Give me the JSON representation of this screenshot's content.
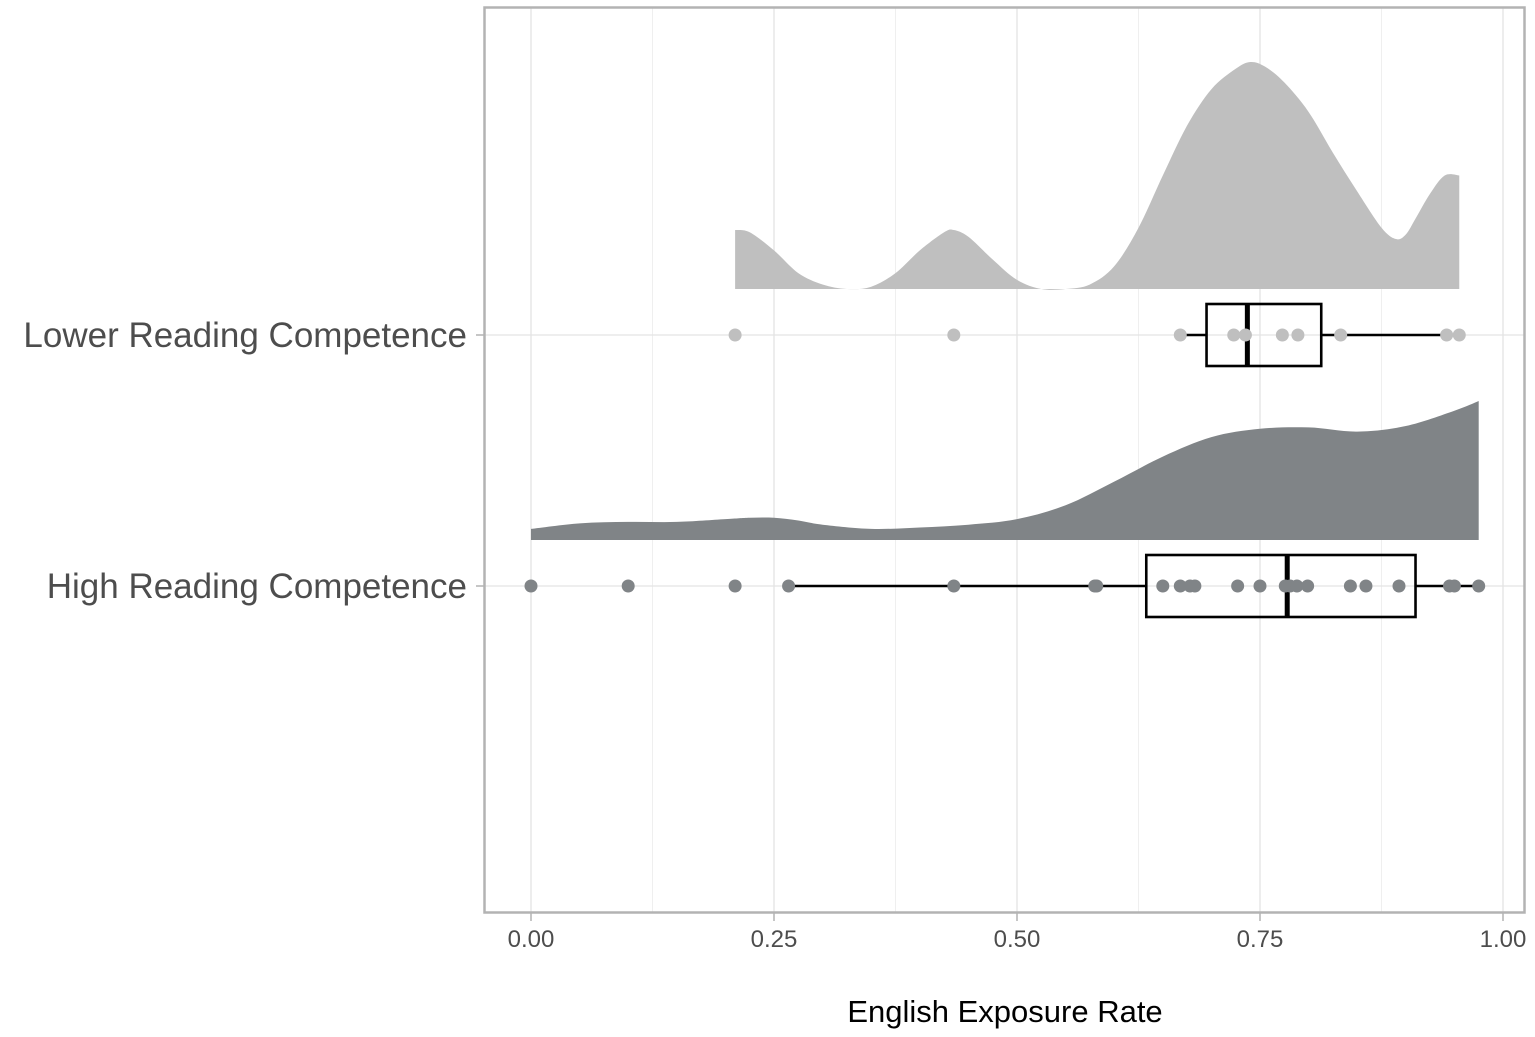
{
  "chart_data": {
    "type": "raincloud",
    "xlabel": "English Exposure Rate",
    "xlim": [
      -0.049,
      1.0
    ],
    "x_ticks": [
      {
        "value": 0.0,
        "label": "0.00"
      },
      {
        "value": 0.25,
        "label": "0.25"
      },
      {
        "value": 0.5,
        "label": "0.50"
      },
      {
        "value": 0.75,
        "label": "0.75"
      },
      {
        "value": 1.0,
        "label": "1.00"
      }
    ],
    "x_minor_ticks": [
      0.125,
      0.375,
      0.625,
      0.875
    ],
    "grid": true,
    "legend": "none",
    "categories": [
      "Lower Reading Competence",
      "High Reading Competence"
    ],
    "series": [
      {
        "category": "Lower Reading Competence",
        "color": "#bfbfbf",
        "points": [
          0.21,
          0.435,
          0.668,
          0.723,
          0.735,
          0.773,
          0.789,
          0.833,
          0.942,
          0.955
        ],
        "box": {
          "q1": 0.695,
          "median": 0.737,
          "q3": 0.813,
          "whisker_low": 0.668,
          "whisker_high": 0.955
        },
        "density": {
          "x": [
            0.21,
            0.225,
            0.25,
            0.275,
            0.3,
            0.325,
            0.35,
            0.375,
            0.4,
            0.425,
            0.435,
            0.45,
            0.475,
            0.5,
            0.525,
            0.55,
            0.575,
            0.6,
            0.625,
            0.65,
            0.675,
            0.7,
            0.725,
            0.74,
            0.755,
            0.775,
            0.8,
            0.825,
            0.85,
            0.875,
            0.89,
            0.9,
            0.91,
            0.925,
            0.94,
            0.955
          ],
          "y": [
            0.26,
            0.25,
            0.17,
            0.07,
            0.02,
            0.0,
            0.01,
            0.07,
            0.17,
            0.25,
            0.26,
            0.23,
            0.13,
            0.04,
            0.0,
            0.0,
            0.02,
            0.1,
            0.27,
            0.5,
            0.72,
            0.88,
            0.97,
            1.0,
            0.98,
            0.91,
            0.78,
            0.6,
            0.43,
            0.27,
            0.22,
            0.24,
            0.31,
            0.42,
            0.5,
            0.5
          ]
        }
      },
      {
        "category": "High Reading Competence",
        "color": "#808487",
        "points": [
          0.0,
          0.1,
          0.21,
          0.265,
          0.435,
          0.58,
          0.582,
          0.65,
          0.668,
          0.678,
          0.683,
          0.727,
          0.75,
          0.776,
          0.781,
          0.788,
          0.799,
          0.843,
          0.859,
          0.893,
          0.945,
          0.95,
          0.975
        ],
        "box": {
          "q1": 0.633,
          "median": 0.778,
          "q3": 0.91,
          "whisker_low": 0.265,
          "whisker_high": 0.975
        },
        "density": {
          "x": [
            0.0,
            0.05,
            0.1,
            0.15,
            0.2,
            0.225,
            0.25,
            0.275,
            0.3,
            0.35,
            0.4,
            0.45,
            0.5,
            0.55,
            0.6,
            0.65,
            0.7,
            0.75,
            0.8,
            0.85,
            0.9,
            0.95,
            0.975
          ],
          "y": [
            0.08,
            0.12,
            0.13,
            0.13,
            0.15,
            0.16,
            0.16,
            0.14,
            0.11,
            0.08,
            0.09,
            0.11,
            0.15,
            0.25,
            0.42,
            0.6,
            0.74,
            0.8,
            0.81,
            0.78,
            0.82,
            0.93,
            1.0
          ]
        }
      }
    ]
  }
}
